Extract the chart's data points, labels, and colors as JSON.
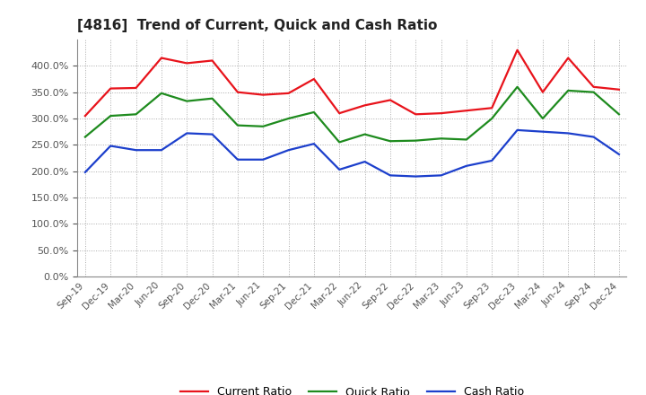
{
  "title": "[4816]  Trend of Current, Quick and Cash Ratio",
  "x_labels": [
    "Sep-19",
    "Dec-19",
    "Mar-20",
    "Jun-20",
    "Sep-20",
    "Dec-20",
    "Mar-21",
    "Jun-21",
    "Sep-21",
    "Dec-21",
    "Mar-22",
    "Jun-22",
    "Sep-22",
    "Dec-22",
    "Mar-23",
    "Jun-23",
    "Sep-23",
    "Dec-23",
    "Mar-24",
    "Jun-24",
    "Sep-24",
    "Dec-24"
  ],
  "current_ratio": [
    305,
    357,
    358,
    415,
    405,
    410,
    350,
    345,
    348,
    375,
    310,
    325,
    335,
    308,
    310,
    315,
    320,
    430,
    350,
    415,
    360,
    355
  ],
  "quick_ratio": [
    265,
    305,
    308,
    348,
    333,
    338,
    287,
    285,
    300,
    312,
    255,
    270,
    257,
    258,
    262,
    260,
    300,
    360,
    300,
    353,
    350,
    308
  ],
  "cash_ratio": [
    198,
    248,
    240,
    240,
    272,
    270,
    222,
    222,
    240,
    252,
    203,
    218,
    192,
    190,
    192,
    210,
    220,
    278,
    275,
    272,
    265,
    232
  ],
  "current_color": "#e8131b",
  "quick_color": "#1e8b1e",
  "cash_color": "#1c3fcc",
  "ylim": [
    0,
    450
  ],
  "yticks": [
    0,
    50,
    100,
    150,
    200,
    250,
    300,
    350,
    400
  ],
  "background_color": "#ffffff",
  "grid_color": "#aaaaaa",
  "legend_labels": [
    "Current Ratio",
    "Quick Ratio",
    "Cash Ratio"
  ],
  "line_width": 1.6
}
